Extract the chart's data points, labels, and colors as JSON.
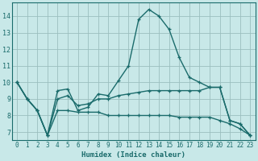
{
  "xlabel": "Humidex (Indice chaleur)",
  "bg_color": "#c8e8e8",
  "grid_color": "#9bbfbf",
  "line_color": "#1a6b6b",
  "xlim": [
    -0.5,
    23.5
  ],
  "ylim": [
    6.5,
    14.8
  ],
  "yticks": [
    7,
    8,
    9,
    10,
    11,
    12,
    13,
    14
  ],
  "xticks": [
    0,
    1,
    2,
    3,
    4,
    5,
    6,
    7,
    8,
    9,
    10,
    11,
    12,
    13,
    14,
    15,
    16,
    17,
    18,
    19,
    20,
    21,
    22,
    23
  ],
  "series": [
    {
      "x": [
        0,
        1,
        2,
        3,
        4,
        5,
        6,
        7,
        8,
        9,
        10,
        11,
        12,
        13,
        14,
        15,
        16,
        17,
        18,
        19,
        20,
        21,
        22,
        23
      ],
      "y": [
        10.0,
        9.0,
        8.3,
        6.8,
        9.5,
        9.6,
        8.3,
        8.5,
        9.3,
        9.2,
        10.1,
        11.0,
        13.8,
        14.4,
        14.0,
        13.2,
        11.5,
        10.3,
        10.0,
        9.7,
        9.7,
        7.7,
        7.5,
        6.8
      ]
    },
    {
      "x": [
        0,
        1,
        2,
        3,
        4,
        5,
        6,
        7,
        8,
        9,
        10,
        11,
        12,
        13,
        14,
        15,
        16,
        17,
        18,
        19,
        20,
        21,
        22,
        23
      ],
      "y": [
        10.0,
        9.0,
        8.3,
        6.8,
        8.3,
        8.3,
        8.2,
        8.2,
        8.2,
        8.0,
        8.0,
        8.0,
        8.0,
        8.0,
        8.0,
        8.0,
        7.9,
        7.9,
        7.9,
        7.9,
        7.7,
        7.5,
        7.2,
        6.8
      ]
    },
    {
      "x": [
        0,
        1,
        2,
        3,
        4,
        5,
        6,
        7,
        8,
        9,
        10,
        11,
        12,
        13,
        14,
        15,
        16,
        17,
        18,
        19,
        20,
        21,
        22,
        23
      ],
      "y": [
        10.0,
        9.0,
        8.3,
        6.8,
        9.0,
        9.2,
        8.6,
        8.7,
        9.0,
        9.0,
        9.2,
        9.3,
        9.4,
        9.5,
        9.5,
        9.5,
        9.5,
        9.5,
        9.5,
        9.7,
        9.7,
        7.7,
        7.5,
        6.8
      ]
    }
  ]
}
